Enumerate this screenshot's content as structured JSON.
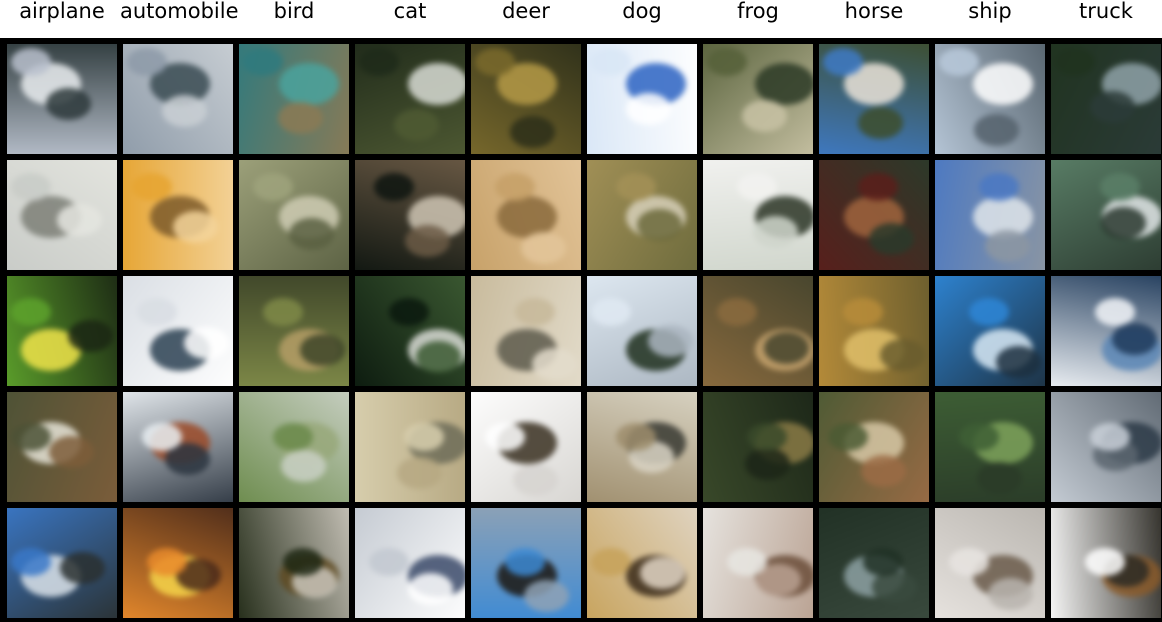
{
  "columns": [
    {
      "label": "airplane"
    },
    {
      "label": "automobile"
    },
    {
      "label": "bird"
    },
    {
      "label": "cat"
    },
    {
      "label": "deer"
    },
    {
      "label": "dog"
    },
    {
      "label": "frog"
    },
    {
      "label": "horse"
    },
    {
      "label": "ship"
    },
    {
      "label": "truck"
    }
  ],
  "rows": 5,
  "tiles": [
    [
      "#b8c0cc|#e9ecee|#2e3a3c",
      "#8d9aa8|#3a4b52|#c9cfd4",
      "#2f7a7e|#4aa39d|#8b7a55",
      "#1f2a1a|#d8dcd5|#4f5a33",
      "#7a6a2c|#b59a47|#2d2f1a",
      "#d8e6f6|#2b63c2|#ffffff",
      "#56603a|#2c3a26|#c8c2a4",
      "#3e7ac6|#eae3d8|#3d4d2c",
      "#b9c9da|#ffffff|#55626c",
      "#20331f|#8fa2a8|#2b3b38"
    ],
    [
      "#c8cbc7|#7c7f77|#e4e5df",
      "#e6a431|#7d5a2a|#f3d39a",
      "#9fa37c|#cfcdb4|#5a6042",
      "#0e1510|#cfc6b4|#6b5a45",
      "#c6a067|#8a6a3c|#e3c59a",
      "#a39157|#d7d0ba|#6c6a3c",
      "#f2f2f0|#2b3526|#cfd5cb",
      "#5a1e1b|#a0643d|#2a3a2a",
      "#4a78c3|#dfe5ea|#8c96a2",
      "#5a7f67|#e2e6e8|#2b3a30"
    ],
    [
      "#5da22b|#f0e44a|#1b2714",
      "#d8dde3|#2c4152|#ffffff",
      "#7f8a48|#b59d66|#3e4529",
      "#0b190e|#d9dcd6|#3c5a32",
      "#c7b99a|#5d5a4c|#e3dccb",
      "#dfe9f2|#20301e|#aab5c0",
      "#8b6b3e|#c8a46e|#45442d",
      "#b78c39|#e1c06a|#6a5d2e",
      "#2e86d6|#d8e9f4|#1d3040",
      "#f2f5f8|#5a86b5|#1f3a5a"
    ],
    [
      "#4c5236|#e6e4d8|#7d5d3a",
      "#e9eef2|#9b4a28|#2c3540",
      "#6a8a4a|#98a87a|#c9d0c4",
      "#d8cfae|#6d6c58|#b6a882",
      "#ffffff|#3a3021|#d6d4d0",
      "#9e8d6c|#383a33|#d9d4c4",
      "#3a4a2a|#8a7a45|#1c2618",
      "#4b5a34|#d7c8a6|#9b6b45",
      "#3e5f35|#7ea25a|#2a3b28",
      "#c9d0d8|#2b3a46|#5c6670"
    ],
    [
      "#3a78c8|#dbe3ea|#2a3030",
      "#e98b2c|#f6d54a|#4a2a1a",
      "#1f2814|#5e4a22|#c9c4ba",
      "#c2c8d0|#3b4a6a|#ffffff",
      "#3d8ad4|#1c1812|#8fa2b5",
      "#c7a25a|#3a2a1a|#e0d5c4",
      "#e8e6e2|#6b4e3a|#b8a090",
      "#203024|#8da1a3|#3a4a3e",
      "#e8e4e0|#6a5a4a|#b8b4ae",
      "#ffffff|#8a5a2a|#2c2a24"
    ]
  ]
}
